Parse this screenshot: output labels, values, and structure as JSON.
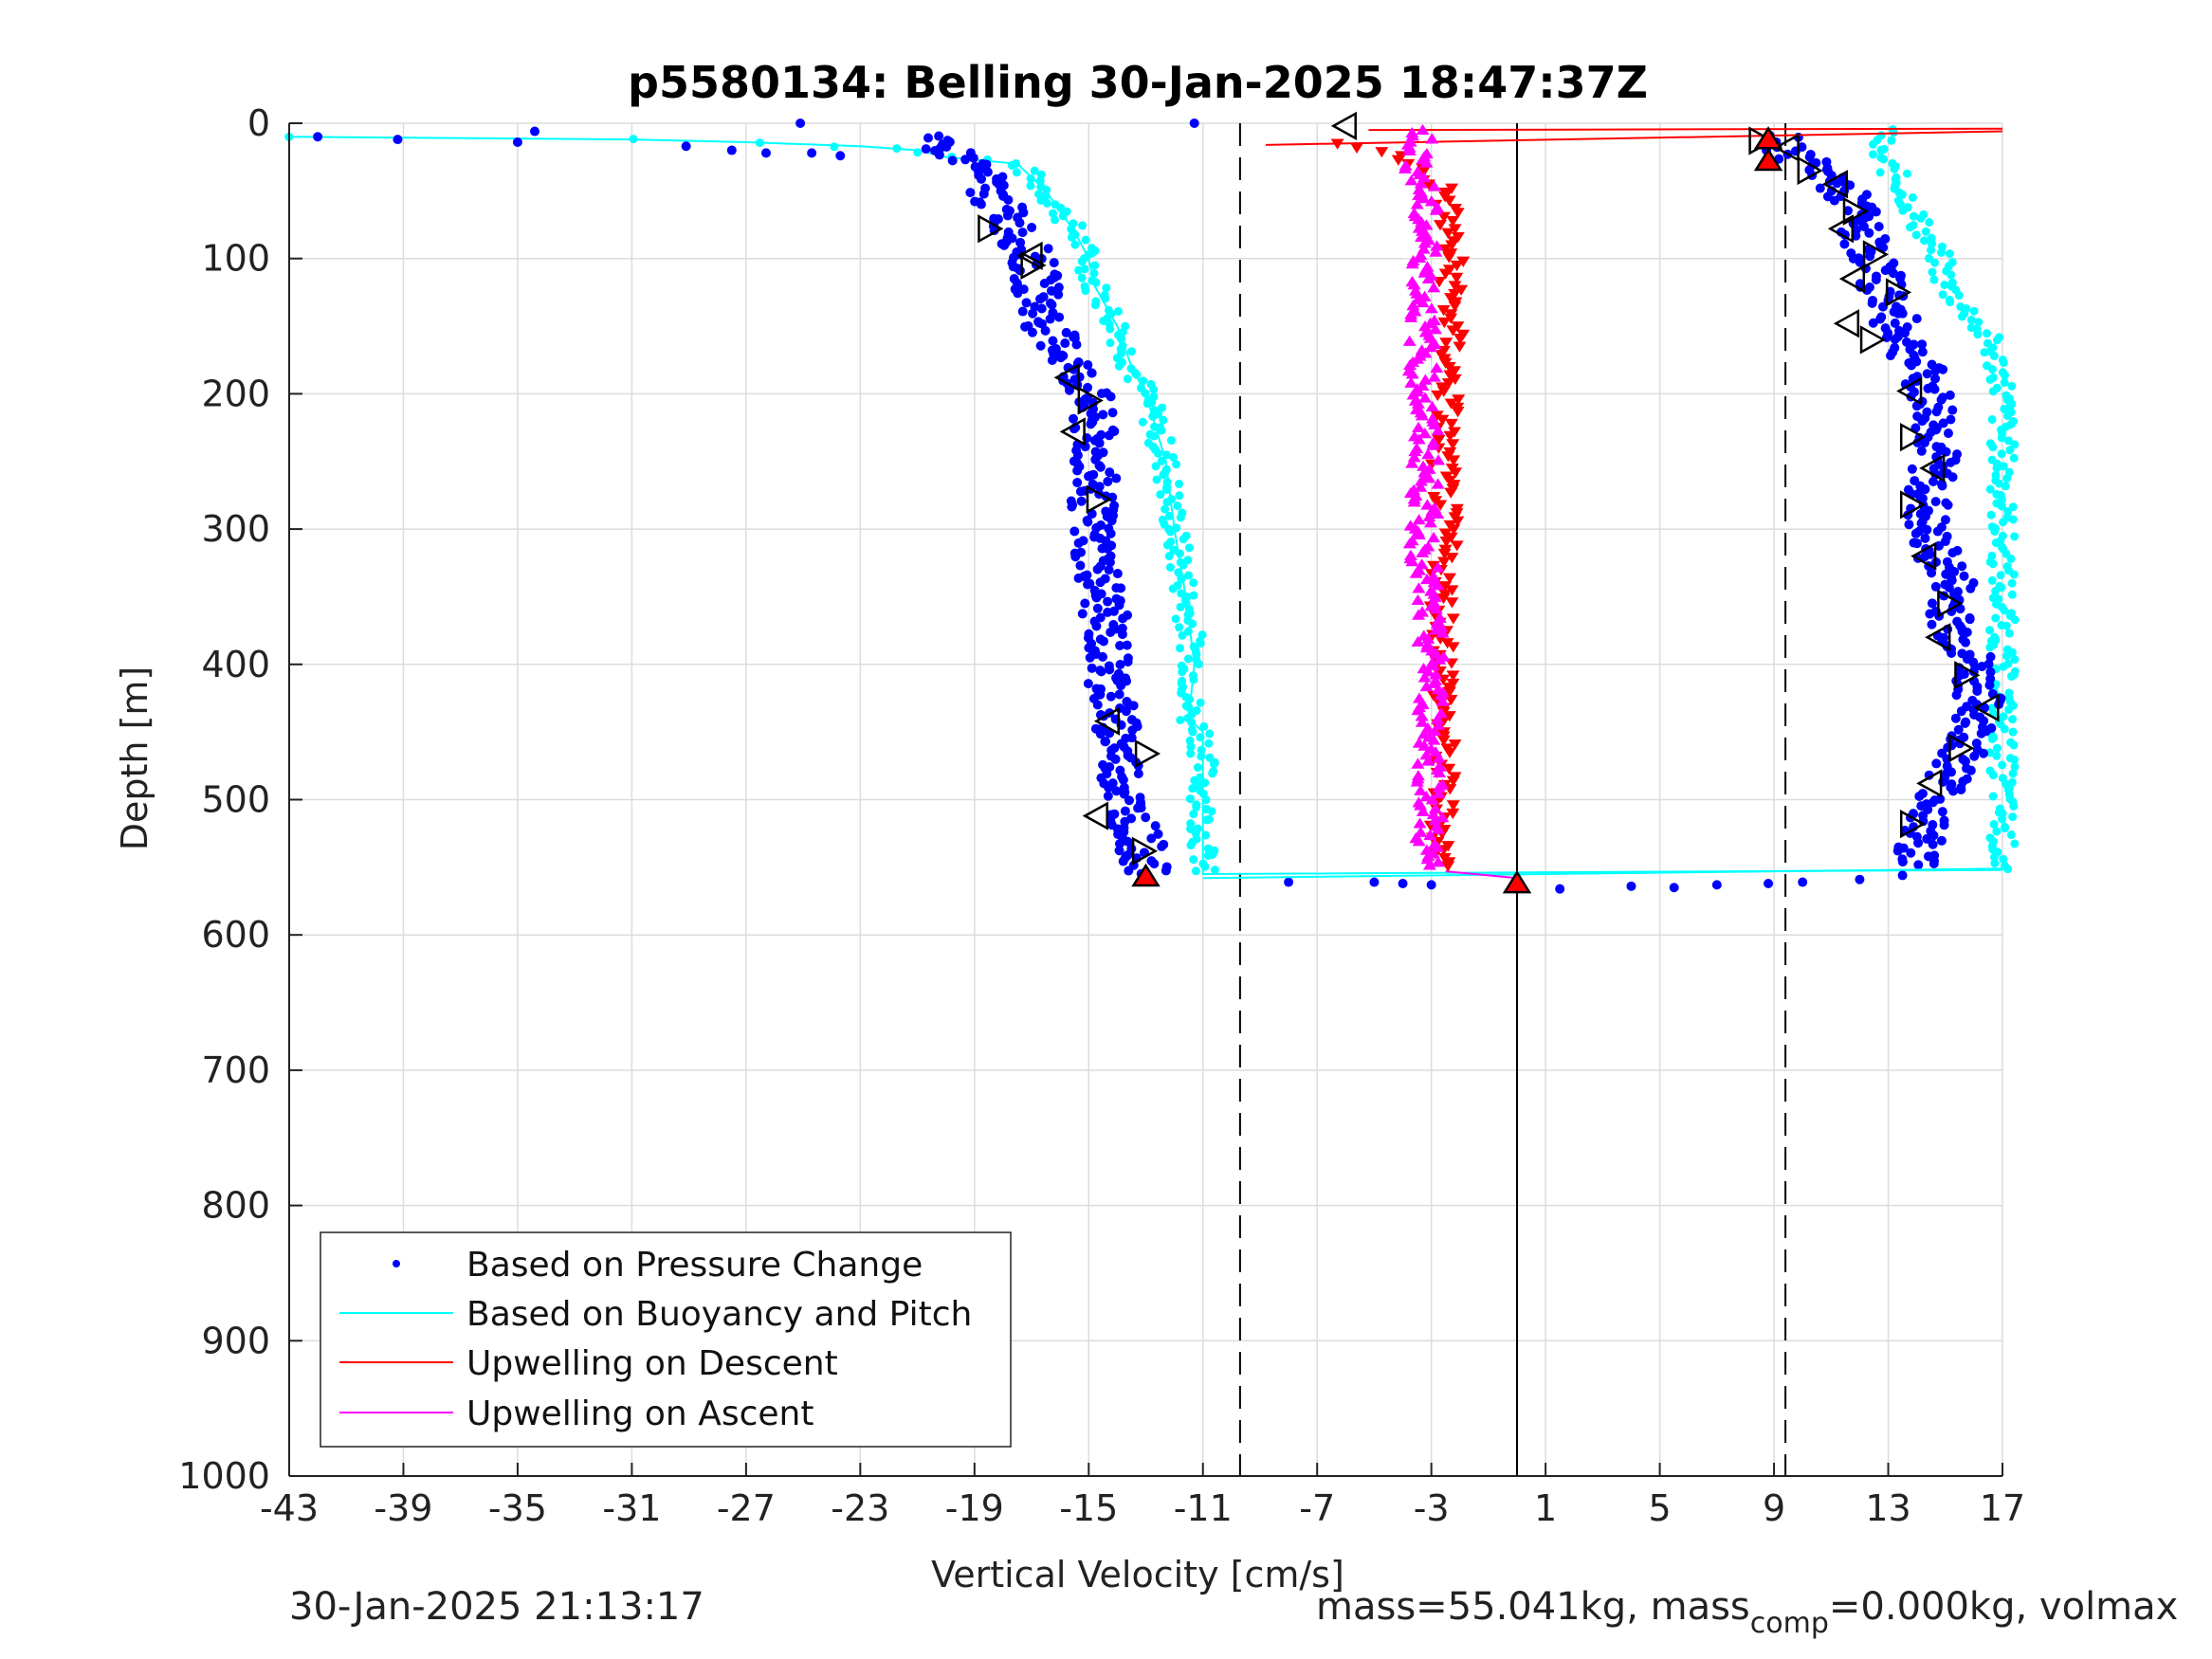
{
  "chart_data": {
    "type": "scatter",
    "title": "p5580134: Belling 30-Jan-2025 18:47:37Z",
    "xlabel": "Vertical Velocity [cm/s]",
    "ylabel": "Depth [m]",
    "xlim": [
      -43,
      17
    ],
    "ylim": [
      0,
      1000
    ],
    "y_reversed": true,
    "grid": true,
    "x_ticks": [
      -43,
      -39,
      -35,
      -31,
      -27,
      -23,
      -19,
      -15,
      -11,
      -7,
      -3,
      1,
      5,
      9,
      13,
      17
    ],
    "y_ticks": [
      0,
      100,
      200,
      300,
      400,
      500,
      600,
      700,
      800,
      900,
      1000
    ],
    "reference_lines": [
      {
        "style": "dashed",
        "x": -9.7
      },
      {
        "style": "dashed",
        "x": 9.4
      },
      {
        "style": "solid",
        "x": 0.0
      }
    ],
    "legend": {
      "position": "bottom-left",
      "entries": [
        "Based on Pressure Change",
        "Based on Buoyancy and Pitch",
        "Upwelling on Descent",
        "Upwelling on Ascent"
      ]
    },
    "series": [
      {
        "name": "Based on Pressure Change",
        "color": "#0000ff",
        "marker": "dot",
        "descent_profile": {
          "depth": [
            10,
            30,
            50,
            80,
            100,
            120,
            150,
            180,
            200,
            250,
            300,
            350,
            400,
            450,
            500,
            530,
            555
          ],
          "velocity": [
            -21,
            -19,
            -18.5,
            -17.5,
            -17,
            -16.8,
            -16.5,
            -15.5,
            -15,
            -14.8,
            -14.9,
            -14.5,
            -14.3,
            -14,
            -13.7,
            -13.2,
            -13
          ]
        },
        "ascent_profile": {
          "depth": [
            550,
            520,
            490,
            460,
            430,
            400,
            370,
            340,
            300,
            270,
            240,
            210,
            180,
            150,
            120,
            100,
            80,
            60,
            40,
            25,
            10
          ],
          "velocity": [
            14,
            14.2,
            15,
            15.8,
            16.2,
            16,
            15.2,
            15.3,
            14.2,
            14.5,
            14.7,
            14.6,
            14.1,
            13.3,
            12.8,
            12.5,
            12,
            11.8,
            11,
            9.8,
            9
          ]
        },
        "surface_points": [
          [
            -42,
            10
          ],
          [
            -39.2,
            12
          ],
          [
            -35,
            14
          ],
          [
            -34.4,
            6
          ],
          [
            -25.1,
            0
          ],
          [
            -11.3,
            0
          ],
          [
            -23.7,
            24
          ],
          [
            -24.7,
            22
          ],
          [
            -26.3,
            22
          ],
          [
            -27.5,
            20
          ],
          [
            -29.1,
            17
          ]
        ],
        "bottom_points": [
          [
            -8,
            561
          ],
          [
            -5,
            561
          ],
          [
            -4,
            562
          ],
          [
            -3,
            563
          ],
          [
            0,
            563
          ],
          [
            1.5,
            566
          ],
          [
            4,
            564
          ],
          [
            5.5,
            565
          ],
          [
            7,
            563
          ],
          [
            8.8,
            562
          ],
          [
            10,
            561
          ],
          [
            12,
            559
          ],
          [
            13.5,
            556
          ]
        ]
      },
      {
        "name": "Based on Buoyancy and Pitch",
        "color": "#00ffff",
        "marker": "line",
        "descent_profile": {
          "depth": [
            10,
            12,
            14,
            17,
            20,
            25,
            30,
            50,
            80,
            100,
            120,
            150,
            180,
            200,
            250,
            300,
            350,
            400,
            440,
            450,
            500,
            540,
            555
          ],
          "velocity": [
            -43,
            -31,
            -27,
            -23,
            -21,
            -20,
            -17.5,
            -16.5,
            -15.5,
            -15,
            -14.8,
            -14,
            -13.5,
            -13,
            -12.3,
            -12,
            -11.6,
            -11.3,
            -11.5,
            -11,
            -11,
            -11,
            -11
          ]
        },
        "ascent_profile": {
          "depth": [
            552,
            520,
            510,
            200,
            190,
            160,
            140,
            120,
            100,
            80,
            60,
            40,
            20,
            5
          ],
          "velocity": [
            17,
            17,
            17,
            17,
            17,
            16.5,
            15.8,
            15,
            14.8,
            14.2,
            13.8,
            13.3,
            12.5,
            13
          ]
        }
      },
      {
        "name": "Upwelling on Descent",
        "color": "#ff0000",
        "marker": "triangle-down",
        "profile": {
          "depth": [
            15,
            25,
            50,
            100,
            150,
            200,
            250,
            300,
            350,
            400,
            450,
            500,
            550
          ],
          "velocity": [
            -6.5,
            -4,
            -2.5,
            -2.3,
            -2.3,
            -2.4,
            -2.6,
            -2.5,
            -2.6,
            -2.5,
            -2.6,
            -2.6,
            -2.6
          ]
        }
      },
      {
        "name": "Upwelling on Ascent",
        "color": "#ff00ff",
        "marker": "triangle-up",
        "profile": {
          "depth": [
            5,
            25,
            50,
            100,
            150,
            200,
            250,
            300,
            350,
            400,
            450,
            500,
            550
          ],
          "velocity": [
            -3.3,
            -3.5,
            -3.3,
            -3.2,
            -3.3,
            -3.3,
            -3.2,
            -3.3,
            -3.2,
            -3.0,
            -3.0,
            -3.0,
            -3.2
          ]
        }
      }
    ],
    "pitch_markers_descent": [
      [
        -18.5,
        78
      ],
      [
        -17,
        98
      ],
      [
        -17,
        105
      ],
      [
        -15.7,
        188
      ],
      [
        -15,
        205
      ],
      [
        -15.5,
        228
      ],
      [
        -14.7,
        278
      ],
      [
        -14.3,
        442
      ],
      [
        -13,
        466
      ],
      [
        -14.7,
        512
      ],
      [
        -13.1,
        538
      ]
    ],
    "pitch_markers_ascent": [
      [
        -6,
        2
      ],
      [
        8.5,
        13
      ],
      [
        9.5,
        18
      ],
      [
        10.2,
        35
      ],
      [
        11.2,
        45
      ],
      [
        11.8,
        65
      ],
      [
        11.4,
        78
      ],
      [
        12.5,
        97
      ],
      [
        11.8,
        115
      ],
      [
        13.3,
        125
      ],
      [
        11.6,
        148
      ],
      [
        12.4,
        160
      ],
      [
        13.8,
        198
      ],
      [
        13.8,
        232
      ],
      [
        14.6,
        255
      ],
      [
        13.8,
        282
      ],
      [
        14.3,
        320
      ],
      [
        15.1,
        355
      ],
      [
        14.8,
        380
      ],
      [
        15.7,
        408
      ],
      [
        16.5,
        432
      ],
      [
        15.5,
        462
      ],
      [
        14.5,
        488
      ],
      [
        13.8,
        518
      ]
    ],
    "pump_markers": [
      [
        -13,
        557
      ],
      [
        0,
        562
      ],
      [
        8.8,
        12
      ],
      [
        8.8,
        28
      ]
    ],
    "surface_lines": [
      {
        "color": "#ff0000",
        "from": [
          -8.8,
          16
        ],
        "to": [
          17,
          6
        ]
      },
      {
        "color": "#ff0000",
        "from": [
          -5.2,
          5
        ],
        "to": [
          17,
          4
        ]
      },
      {
        "color": "#ff00ff",
        "from": [
          -2.5,
          553
        ],
        "to": [
          0,
          558
        ]
      }
    ]
  },
  "footer": {
    "timestamp": "30-Jan-2025 21:13:17",
    "info_prefix": "mass=55.041kg, mass",
    "info_sub": "comp",
    "info_suffix": "=0.000kg, volmax"
  }
}
